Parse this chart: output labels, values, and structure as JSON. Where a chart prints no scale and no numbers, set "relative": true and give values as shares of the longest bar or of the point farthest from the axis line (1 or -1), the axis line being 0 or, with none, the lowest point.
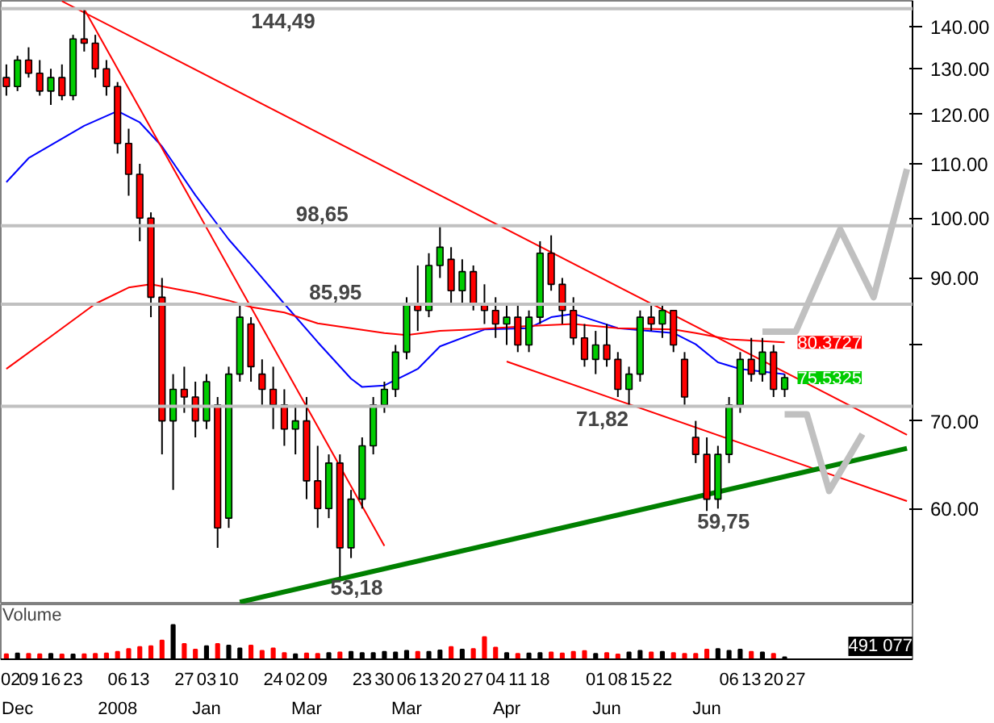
{
  "chart_data": [
    {
      "type": "candlestick",
      "log": true,
      "tick_labels": "y",
      "ylim": [
        50.7,
        146.5
      ],
      "yticks": [
        {
          "value": 60,
          "label": "60.00"
        },
        {
          "value": 70,
          "label": "70.00"
        },
        {
          "value": 80,
          "label": null
        },
        {
          "value": 90,
          "label": "90.00"
        },
        {
          "value": 100,
          "label": "100.00"
        },
        {
          "value": 110,
          "label": "110.00"
        },
        {
          "value": 120,
          "label": "120.00"
        },
        {
          "value": 130,
          "label": "130.00"
        },
        {
          "value": 140,
          "label": "140.00"
        }
      ],
      "categories": [
        "02",
        null,
        "09",
        null,
        "16",
        null,
        "23",
        null,
        null,
        null,
        "06",
        null,
        "13",
        null,
        null,
        null,
        "27",
        null,
        "03",
        null,
        "10",
        null,
        null,
        null,
        "24",
        null,
        "02",
        null,
        "09",
        null,
        null,
        null,
        "23",
        null,
        "30",
        null,
        "06",
        null,
        "13",
        null,
        "20",
        null,
        "27",
        null,
        "04",
        null,
        "11",
        null,
        "18",
        null,
        null,
        null,
        null,
        "01",
        null,
        "08",
        null,
        "15",
        null,
        "22",
        null,
        null,
        null,
        null,
        null,
        "06",
        null,
        "13",
        null,
        "20",
        null,
        "27",
        null,
        null,
        null,
        null,
        null,
        null,
        null,
        null,
        null,
        null
      ],
      "ohlc": [
        [
          128,
          131,
          124,
          126
        ],
        [
          126,
          133,
          125,
          132
        ],
        [
          132,
          135,
          128,
          129
        ],
        [
          129,
          132,
          124,
          125
        ],
        [
          125,
          130,
          122,
          128
        ],
        [
          128,
          131,
          123,
          124
        ],
        [
          124,
          138,
          123,
          137
        ],
        [
          137,
          144.49,
          134,
          136
        ],
        [
          136,
          138,
          128,
          130
        ],
        [
          130,
          132,
          124,
          126
        ],
        [
          126,
          127,
          112,
          114
        ],
        [
          114,
          117,
          104,
          108
        ],
        [
          108,
          110,
          96,
          100
        ],
        [
          100,
          101,
          84,
          87
        ],
        [
          87,
          90,
          66,
          70
        ],
        [
          70,
          76,
          62,
          74
        ],
        [
          74,
          77,
          71,
          73
        ],
        [
          73,
          75,
          68,
          70
        ],
        [
          70,
          76,
          69,
          75
        ],
        [
          72,
          73,
          56,
          58
        ],
        [
          59,
          77,
          58,
          76
        ],
        [
          76,
          86,
          75,
          84
        ],
        [
          83,
          84,
          75,
          77
        ],
        [
          76,
          78,
          72,
          74
        ],
        [
          74,
          77,
          69,
          72
        ],
        [
          72,
          74,
          67,
          69
        ],
        [
          69,
          72,
          66,
          70
        ],
        [
          70,
          73,
          61,
          63
        ],
        [
          63,
          67,
          58,
          60
        ],
        [
          60,
          66,
          59,
          65
        ],
        [
          65,
          66,
          53.18,
          56
        ],
        [
          56,
          62,
          55,
          61
        ],
        [
          61,
          68,
          60,
          67
        ],
        [
          67,
          73,
          66,
          72
        ],
        [
          72,
          75,
          71,
          74
        ],
        [
          74,
          80,
          73,
          79
        ],
        [
          79,
          87,
          78,
          86
        ],
        [
          86,
          92,
          82,
          85
        ],
        [
          85,
          94,
          84,
          92
        ],
        [
          92,
          98.65,
          90,
          95
        ],
        [
          93,
          95,
          86,
          88
        ],
        [
          88,
          93,
          86,
          91
        ],
        [
          91,
          92,
          85,
          86
        ],
        [
          86,
          89,
          83,
          85
        ],
        [
          85,
          87,
          81,
          83
        ],
        [
          83,
          86,
          80,
          84
        ],
        [
          84,
          86,
          79,
          80
        ],
        [
          80,
          85,
          79,
          84
        ],
        [
          84,
          96,
          83,
          94
        ],
        [
          94,
          97,
          88,
          89
        ],
        [
          89,
          90,
          83,
          85
        ],
        [
          85,
          87,
          80,
          81
        ],
        [
          81,
          83,
          77,
          78
        ],
        [
          78,
          82,
          76,
          80
        ],
        [
          80,
          83,
          77,
          78
        ],
        [
          78,
          79,
          73,
          74
        ],
        [
          74,
          77,
          72,
          76
        ],
        [
          76,
          85,
          75,
          84
        ],
        [
          84,
          86,
          82,
          83
        ],
        [
          83,
          86,
          81,
          85
        ],
        [
          85,
          85,
          79,
          80
        ],
        [
          78,
          79,
          72,
          73
        ],
        [
          68,
          70,
          65,
          66
        ],
        [
          66,
          68,
          59.75,
          61
        ],
        [
          61,
          67,
          60,
          66
        ],
        [
          66,
          73,
          65,
          72
        ],
        [
          72,
          79,
          71,
          78
        ],
        [
          78,
          81,
          75,
          76
        ],
        [
          76,
          81,
          75,
          79
        ],
        [
          79,
          80,
          73,
          74
        ],
        [
          74,
          76,
          73,
          75.5325
        ],
        null,
        null,
        null,
        null,
        null,
        null,
        null,
        null,
        null,
        null,
        null
      ],
      "colors": [
        "#ff0000",
        "#00cc00",
        "#ff0000",
        "#ff0000",
        "#00cc00",
        "#ff0000",
        "#00cc00",
        "#ff0000",
        "#ff0000",
        "#ff0000",
        "#ff0000",
        "#ff0000",
        "#ff0000",
        "#ff0000",
        "#ff0000",
        "#00cc00",
        "#ff0000",
        "#ff0000",
        "#00cc00",
        "#ff0000",
        "#00cc00",
        "#00cc00",
        "#ff0000",
        "#ff0000",
        "#ff0000",
        "#ff0000",
        "#00cc00",
        "#ff0000",
        "#ff0000",
        "#00cc00",
        "#ff0000",
        "#00cc00",
        "#00cc00",
        "#00cc00",
        "#00cc00",
        "#00cc00",
        "#00cc00",
        "#ff0000",
        "#00cc00",
        "#00cc00",
        "#ff0000",
        "#00cc00",
        "#ff0000",
        "#ff0000",
        "#ff0000",
        "#00cc00",
        "#ff0000",
        "#00cc00",
        "#00cc00",
        "#ff0000",
        "#ff0000",
        "#ff0000",
        "#ff0000",
        "#00cc00",
        "#ff0000",
        "#ff0000",
        "#00cc00",
        "#00cc00",
        "#ff0000",
        "#00cc00",
        "#ff0000",
        "#ff0000",
        "#ff0000",
        "#ff0000",
        "#00cc00",
        "#00cc00",
        "#00cc00",
        "#ff0000",
        "#00cc00",
        "#ff0000",
        "#00cc00",
        null,
        null,
        null,
        null,
        null,
        null,
        null,
        null,
        null,
        null,
        null
      ],
      "value_labels": [
        null,
        null,
        null,
        null,
        null,
        null,
        null,
        null,
        null,
        null,
        null,
        null,
        null,
        null,
        null,
        null,
        null,
        null,
        null,
        null,
        null,
        null,
        null,
        null,
        null,
        null,
        null,
        null,
        null,
        null,
        null,
        null,
        null,
        null,
        null,
        null,
        null,
        null,
        null,
        null,
        null,
        null,
        null,
        null,
        null,
        null,
        null,
        null,
        null,
        null,
        null,
        null,
        null,
        null,
        null,
        null,
        null,
        null,
        null,
        null,
        null,
        null,
        null,
        null,
        null,
        null,
        null,
        null,
        null,
        null,
        "75.5325",
        null,
        null,
        null,
        null,
        null,
        null,
        null,
        null,
        null,
        null,
        null
      ],
      "series": [
        {
          "type": "line",
          "color": "#0000ff",
          "values": [
            106.5,
            null,
            111.1,
            null,
            null,
            null,
            null,
            117.6,
            null,
            null,
            120.7,
            null,
            118.3,
            null,
            113.4,
            null,
            null,
            104.1,
            null,
            null,
            96.3,
            null,
            92.1,
            null,
            null,
            86.0,
            null,
            null,
            80.4,
            null,
            null,
            75.4,
            74.3,
            null,
            74.5,
            null,
            null,
            76.7,
            null,
            79.8,
            null,
            null,
            null,
            82.2,
            null,
            null,
            null,
            82.4,
            null,
            84.0,
            null,
            84.5,
            null,
            null,
            null,
            82.4,
            null,
            null,
            null,
            null,
            81.7,
            null,
            80.1,
            null,
            77.6,
            null,
            76.7,
            null,
            null,
            null,
            76.0,
            null,
            null,
            null,
            null,
            null,
            null,
            null,
            null,
            null,
            null,
            null
          ]
        },
        {
          "type": "line",
          "color": "#ff0000",
          "values": [
            76.7,
            null,
            null,
            null,
            81.2,
            null,
            null,
            null,
            86.0,
            null,
            null,
            88.5,
            null,
            89.0,
            null,
            null,
            null,
            87.7,
            null,
            null,
            86.5,
            null,
            85.5,
            null,
            null,
            84.7,
            null,
            null,
            83.1,
            null,
            null,
            82.4,
            null,
            null,
            81.7,
            null,
            81.4,
            null,
            null,
            82.0,
            null,
            null,
            82.2,
            null,
            null,
            null,
            null,
            82.7,
            null,
            null,
            null,
            83.0,
            null,
            null,
            null,
            82.4,
            null,
            null,
            null,
            null,
            82.2,
            null,
            81.7,
            null,
            null,
            80.8,
            null,
            null,
            null,
            null,
            80.3727,
            null,
            null,
            null,
            null,
            null,
            null,
            null,
            null,
            null,
            null,
            null
          ],
          "value_labels": [
            null,
            null,
            null,
            null,
            null,
            null,
            null,
            null,
            null,
            null,
            null,
            null,
            null,
            null,
            null,
            null,
            null,
            null,
            null,
            null,
            null,
            null,
            null,
            null,
            null,
            null,
            null,
            null,
            null,
            null,
            null,
            null,
            null,
            null,
            null,
            null,
            null,
            null,
            null,
            null,
            null,
            null,
            null,
            null,
            null,
            null,
            null,
            null,
            null,
            null,
            null,
            null,
            null,
            null,
            null,
            null,
            null,
            null,
            null,
            null,
            null,
            null,
            null,
            null,
            null,
            null,
            null,
            null,
            null,
            null,
            "80.3727",
            null,
            null,
            null,
            null,
            null,
            null,
            null,
            null,
            null,
            null,
            null
          ]
        },
        {
          "type": "line",
          "color": "#ff0000",
          "values": [
            null,
            null,
            null,
            null,
            null,
            null,
            null,
            144.4,
            null,
            null,
            null,
            null,
            null,
            null,
            null,
            null,
            null,
            null,
            null,
            null,
            null,
            null,
            null,
            null,
            null,
            null,
            null,
            null,
            null,
            null,
            null,
            null,
            null,
            null,
            56.2,
            null,
            null,
            null,
            null,
            null,
            null,
            null,
            null,
            null,
            null,
            null,
            null,
            null,
            null,
            null,
            null,
            null,
            null,
            null,
            null,
            null,
            null,
            null,
            null,
            null,
            null,
            null,
            null,
            null,
            null,
            null,
            null,
            null,
            null,
            null,
            null,
            null,
            null,
            null,
            null,
            null,
            null,
            null,
            null,
            null,
            null,
            null
          ]
        },
        {
          "type": "line",
          "color": "#ff0000",
          "values": [
            null,
            null,
            null,
            null,
            null,
            146.4,
            null,
            null,
            null,
            null,
            null,
            null,
            null,
            null,
            null,
            null,
            null,
            null,
            null,
            null,
            null,
            null,
            null,
            null,
            null,
            null,
            null,
            null,
            null,
            null,
            null,
            null,
            null,
            null,
            null,
            null,
            null,
            null,
            null,
            null,
            null,
            null,
            null,
            null,
            null,
            null,
            null,
            null,
            null,
            null,
            null,
            null,
            null,
            null,
            null,
            null,
            null,
            null,
            null,
            null,
            null,
            null,
            null,
            null,
            null,
            null,
            null,
            null,
            null,
            null,
            null,
            null,
            null,
            null,
            null,
            null,
            null,
            null,
            null,
            null,
            null,
            68.3
          ]
        },
        {
          "type": "line",
          "color": "#ff0000",
          "values": [
            null,
            null,
            null,
            null,
            null,
            null,
            null,
            null,
            null,
            null,
            null,
            null,
            null,
            null,
            null,
            null,
            null,
            null,
            null,
            null,
            null,
            null,
            null,
            null,
            null,
            null,
            null,
            null,
            null,
            null,
            null,
            null,
            null,
            null,
            null,
            null,
            null,
            null,
            null,
            null,
            null,
            null,
            null,
            null,
            null,
            77.7,
            null,
            null,
            null,
            null,
            null,
            null,
            null,
            null,
            null,
            null,
            null,
            null,
            null,
            null,
            null,
            null,
            null,
            null,
            null,
            null,
            null,
            null,
            null,
            null,
            null,
            null,
            null,
            null,
            null,
            null,
            null,
            null,
            null,
            null,
            null,
            60.8
          ]
        },
        {
          "type": "line",
          "color": "#008000",
          "values": [
            null,
            null,
            null,
            null,
            null,
            null,
            null,
            null,
            null,
            null,
            null,
            null,
            null,
            null,
            null,
            null,
            null,
            null,
            null,
            null,
            null,
            50.9,
            null,
            null,
            null,
            null,
            null,
            null,
            null,
            null,
            null,
            null,
            null,
            null,
            null,
            null,
            null,
            null,
            null,
            null,
            null,
            null,
            null,
            null,
            null,
            null,
            null,
            null,
            null,
            null,
            null,
            null,
            null,
            null,
            null,
            null,
            null,
            null,
            null,
            null,
            null,
            null,
            null,
            null,
            null,
            null,
            null,
            null,
            null,
            null,
            null,
            null,
            null,
            null,
            null,
            null,
            null,
            null,
            null,
            null,
            null,
            66.7
          ]
        },
        {
          "type": "line",
          "color": "#c0c0c0",
          "values": [
            null,
            null,
            null,
            null,
            null,
            null,
            null,
            null,
            null,
            null,
            null,
            null,
            null,
            null,
            null,
            null,
            null,
            null,
            null,
            null,
            null,
            null,
            null,
            null,
            null,
            null,
            null,
            null,
            null,
            null,
            null,
            null,
            null,
            null,
            null,
            null,
            null,
            null,
            null,
            null,
            null,
            null,
            null,
            null,
            null,
            null,
            null,
            null,
            null,
            null,
            null,
            null,
            null,
            null,
            null,
            null,
            null,
            null,
            null,
            null,
            null,
            null,
            null,
            null,
            null,
            null,
            null,
            null,
            81.9,
            null,
            null,
            81.9,
            null,
            null,
            null,
            98.0,
            null,
            null,
            87.0,
            null,
            null,
            109.0
          ]
        },
        {
          "type": "line",
          "color": "#c0c0c0",
          "values": [
            null,
            null,
            null,
            null,
            null,
            null,
            null,
            null,
            null,
            null,
            null,
            null,
            null,
            null,
            null,
            null,
            null,
            null,
            null,
            null,
            null,
            null,
            null,
            null,
            null,
            null,
            null,
            null,
            null,
            null,
            null,
            null,
            null,
            null,
            null,
            null,
            null,
            null,
            null,
            null,
            null,
            null,
            null,
            null,
            null,
            null,
            null,
            null,
            null,
            null,
            null,
            null,
            null,
            null,
            null,
            null,
            null,
            null,
            null,
            null,
            null,
            null,
            null,
            null,
            null,
            null,
            null,
            null,
            null,
            null,
            70.8,
            null,
            70.8,
            null,
            61.9,
            null,
            null,
            68.4,
            null,
            null,
            null,
            null
          ]
        }
      ],
      "ref_lines": [
        {
          "axis": "y",
          "value": 144.49,
          "label": "144,49",
          "color": "#c0c0c0"
        },
        {
          "axis": "y",
          "value": 98.65,
          "label": "98,65",
          "color": "#c0c0c0"
        },
        {
          "axis": "y",
          "value": 85.95,
          "label": "85,95",
          "color": "#c0c0c0"
        },
        {
          "axis": "y",
          "value": 71.82,
          "label": "71,82",
          "color": "#c0c0c0"
        }
      ],
      "annotations": [
        {
          "text": "53,18",
          "y": 53.18
        },
        {
          "text": "59,75",
          "y": 59.75
        }
      ]
    },
    {
      "type": "bar",
      "relative": true,
      "title": "Volume",
      "tick_labels": "x",
      "categories": [
        "02",
        null,
        "09",
        null,
        "16",
        null,
        "23",
        null,
        null,
        null,
        "06",
        null,
        "13",
        null,
        null,
        null,
        "27",
        null,
        "03",
        null,
        "10",
        null,
        null,
        null,
        "24",
        null,
        "02",
        null,
        "09",
        null,
        null,
        null,
        "23",
        null,
        "30",
        null,
        "06",
        null,
        "13",
        null,
        "20",
        null,
        "27",
        null,
        "04",
        null,
        "11",
        null,
        "18",
        null,
        null,
        null,
        null,
        "01",
        null,
        "08",
        null,
        "15",
        null,
        "22",
        null,
        null,
        null,
        null,
        null,
        "06",
        null,
        "13",
        null,
        "20",
        null,
        "27",
        null,
        null,
        null,
        null,
        null,
        null,
        null,
        null,
        null,
        null
      ],
      "values": [
        0.15,
        0.17,
        0.16,
        0.15,
        0.16,
        0.14,
        0.14,
        0.15,
        0.16,
        0.17,
        0.22,
        0.3,
        0.36,
        0.38,
        0.55,
        1.0,
        0.45,
        0.28,
        0.38,
        0.45,
        0.4,
        0.32,
        0.4,
        0.25,
        0.32,
        0.18,
        0.15,
        0.17,
        0.16,
        0.18,
        0.2,
        0.22,
        0.18,
        0.18,
        0.22,
        0.2,
        0.25,
        0.22,
        0.22,
        0.26,
        0.36,
        0.28,
        0.3,
        0.65,
        0.34,
        0.18,
        0.16,
        0.17,
        0.18,
        0.2,
        0.17,
        0.22,
        0.24,
        0.16,
        0.18,
        0.14,
        0.2,
        0.25,
        0.2,
        0.22,
        0.18,
        0.16,
        0.16,
        0.28,
        0.3,
        0.25,
        0.28,
        0.22,
        0.2,
        0.16,
        0.06,
        null,
        null,
        null,
        null,
        null,
        null,
        null,
        null,
        null,
        null,
        null
      ],
      "colors": [
        "#ff0000",
        "#000000",
        "#ff0000",
        "#ff0000",
        "#000000",
        "#ff0000",
        "#000000",
        "#ff0000",
        "#ff0000",
        "#ff0000",
        "#ff0000",
        "#ff0000",
        "#ff0000",
        "#ff0000",
        "#ff0000",
        "#000000",
        "#ff0000",
        "#ff0000",
        "#000000",
        "#ff0000",
        "#000000",
        "#000000",
        "#ff0000",
        "#ff0000",
        "#ff0000",
        "#ff0000",
        "#000000",
        "#ff0000",
        "#ff0000",
        "#000000",
        "#ff0000",
        "#000000",
        "#000000",
        "#000000",
        "#000000",
        "#000000",
        "#000000",
        "#ff0000",
        "#000000",
        "#000000",
        "#ff0000",
        "#000000",
        "#ff0000",
        "#ff0000",
        "#ff0000",
        "#000000",
        "#ff0000",
        "#000000",
        "#000000",
        "#ff0000",
        "#ff0000",
        "#ff0000",
        "#ff0000",
        "#000000",
        "#ff0000",
        "#ff0000",
        "#000000",
        "#000000",
        "#ff0000",
        "#000000",
        "#ff0000",
        "#ff0000",
        "#ff0000",
        "#ff0000",
        "#000000",
        "#000000",
        "#000000",
        "#ff0000",
        "#000000",
        "#ff0000",
        "#000000",
        null,
        null,
        null,
        null,
        null,
        null,
        null,
        null,
        null,
        null,
        null
      ],
      "annotations": [
        "Dec",
        "2008",
        "Jan",
        "Mar",
        "Mar",
        "Apr",
        "Jun",
        "Jun",
        "491 077"
      ]
    }
  ]
}
